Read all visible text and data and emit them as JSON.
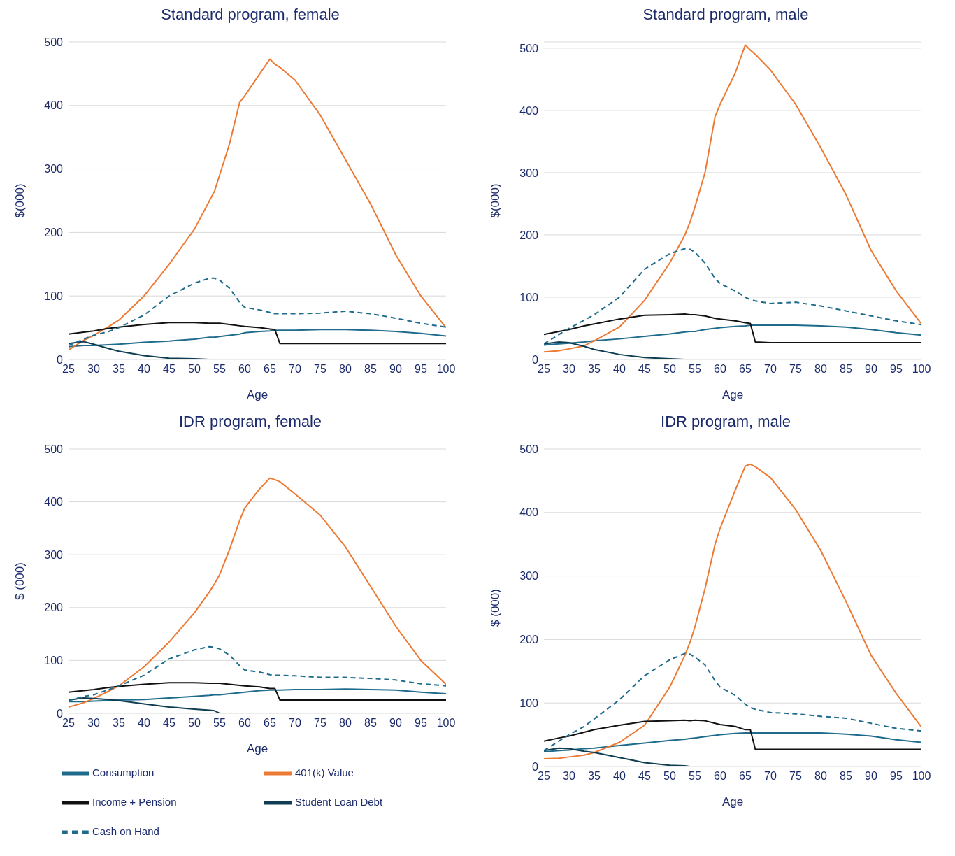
{
  "chart_data": [
    {
      "type": "line",
      "title": "Standard program, female",
      "xlabel": "Age",
      "ylabel": "$(000)",
      "x": [
        25,
        28,
        30,
        33,
        35,
        40,
        45,
        50,
        53,
        54,
        55,
        57,
        59,
        60,
        63,
        65,
        66,
        67,
        70,
        75,
        80,
        85,
        90,
        95,
        100
      ],
      "xlim": [
        25,
        100
      ],
      "xticks": [
        25,
        30,
        35,
        40,
        45,
        50,
        55,
        60,
        65,
        70,
        75,
        80,
        85,
        90,
        95,
        100
      ],
      "ylim": [
        0,
        500
      ],
      "yticks": [
        0,
        100,
        200,
        300,
        400,
        500
      ],
      "grid": "y",
      "legend": false,
      "series": [
        {
          "color": "#1f6b8c",
          "values": [
            20,
            22,
            22,
            23,
            24,
            27,
            29,
            32,
            35,
            35,
            36,
            38,
            40,
            42,
            44,
            45,
            46,
            46,
            46,
            47,
            47,
            46,
            44,
            41,
            37
          ]
        },
        {
          "color": "#ec7a34",
          "values": [
            15,
            30,
            38,
            52,
            62,
            100,
            150,
            205,
            250,
            265,
            290,
            340,
            405,
            415,
            450,
            473,
            465,
            460,
            440,
            385,
            315,
            245,
            165,
            100,
            50
          ]
        },
        {
          "color": "#111111",
          "values": [
            40,
            43,
            45,
            49,
            51,
            55,
            58,
            58,
            57,
            57,
            57,
            55,
            53,
            52,
            50,
            48,
            47,
            25,
            25,
            25,
            25,
            25,
            25,
            25,
            25
          ]
        },
        {
          "color": "#0e3d52",
          "values": [
            25,
            28,
            24,
            17,
            13,
            6,
            2,
            1,
            0,
            0,
            0,
            0,
            0,
            0,
            0,
            0,
            0,
            0,
            0,
            0,
            0,
            0,
            0,
            0,
            0
          ]
        },
        {
          "color": "#1f6b8c",
          "line_style": "dashed",
          "values": [
            22,
            32,
            38,
            44,
            50,
            70,
            100,
            120,
            128,
            128,
            125,
            112,
            90,
            82,
            78,
            74,
            72,
            72,
            72,
            73,
            76,
            72,
            65,
            57,
            51
          ]
        }
      ]
    },
    {
      "type": "line",
      "title": "Standard program, male",
      "xlabel": "Age",
      "ylabel": "$(000)",
      "x": [
        25,
        28,
        30,
        33,
        35,
        40,
        45,
        50,
        53,
        54,
        55,
        57,
        59,
        60,
        63,
        65,
        66,
        67,
        70,
        75,
        80,
        85,
        90,
        95,
        100
      ],
      "xlim": [
        25,
        100
      ],
      "xticks": [
        25,
        30,
        35,
        40,
        45,
        50,
        55,
        60,
        65,
        70,
        75,
        80,
        85,
        90,
        95,
        100
      ],
      "ylim": [
        0,
        510
      ],
      "yticks": [
        0,
        100,
        200,
        300,
        400,
        500
      ],
      "grid": "y",
      "legend": false,
      "series": [
        {
          "color": "#1f6b8c",
          "values": [
            23,
            25,
            26,
            28,
            30,
            33,
            37,
            41,
            44,
            45,
            45,
            48,
            50,
            51,
            53,
            54,
            55,
            55,
            55,
            55,
            54,
            52,
            48,
            43,
            39
          ]
        },
        {
          "color": "#ec7a34",
          "values": [
            12,
            14,
            17,
            22,
            30,
            52,
            95,
            155,
            200,
            220,
            245,
            300,
            390,
            410,
            460,
            505,
            497,
            490,
            465,
            410,
            340,
            265,
            175,
            110,
            57
          ]
        },
        {
          "color": "#111111",
          "values": [
            40,
            45,
            48,
            54,
            57,
            65,
            71,
            72,
            73,
            72,
            72,
            70,
            66,
            65,
            62,
            59,
            58,
            28,
            27,
            27,
            27,
            27,
            27,
            27,
            27
          ]
        },
        {
          "color": "#0e3d52",
          "values": [
            25,
            28,
            27,
            21,
            16,
            8,
            3,
            1,
            0,
            0,
            0,
            0,
            0,
            0,
            0,
            0,
            0,
            0,
            0,
            0,
            0,
            0,
            0,
            0,
            0
          ]
        },
        {
          "color": "#1f6b8c",
          "line_style": "dashed",
          "values": [
            25,
            40,
            50,
            63,
            72,
            100,
            145,
            170,
            178,
            177,
            172,
            155,
            130,
            122,
            110,
            100,
            96,
            94,
            90,
            92,
            86,
            78,
            70,
            62,
            56
          ]
        }
      ]
    },
    {
      "type": "line",
      "title": "IDR program, female",
      "xlabel": "Age",
      "ylabel": "$ (000)",
      "x": [
        25,
        28,
        30,
        33,
        35,
        40,
        45,
        50,
        53,
        54,
        55,
        57,
        59,
        60,
        63,
        65,
        66,
        67,
        70,
        75,
        80,
        85,
        90,
        95,
        100
      ],
      "xlim": [
        25,
        100
      ],
      "xticks": [
        25,
        30,
        35,
        40,
        45,
        50,
        55,
        60,
        65,
        70,
        75,
        80,
        85,
        90,
        95,
        100
      ],
      "ylim": [
        0,
        500
      ],
      "yticks": [
        0,
        100,
        200,
        300,
        400,
        500
      ],
      "grid": "y",
      "legend": "bottom",
      "series": [
        {
          "name": "Consumption",
          "color": "#1f6b8c",
          "values": [
            22,
            22,
            23,
            24,
            25,
            26,
            29,
            32,
            34,
            35,
            35,
            37,
            39,
            40,
            43,
            44,
            44,
            44,
            45,
            45,
            46,
            45,
            44,
            40,
            37
          ]
        },
        {
          "name": "401(k) Value",
          "color": "#ec7a34",
          "values": [
            12,
            20,
            28,
            42,
            52,
            88,
            135,
            190,
            230,
            245,
            262,
            310,
            365,
            388,
            425,
            445,
            442,
            438,
            415,
            375,
            315,
            240,
            165,
            100,
            55
          ]
        },
        {
          "name": "Income + Pension",
          "color": "#111111",
          "values": [
            40,
            43,
            45,
            49,
            51,
            55,
            58,
            58,
            57,
            57,
            57,
            55,
            53,
            52,
            50,
            47,
            47,
            25,
            25,
            25,
            25,
            25,
            25,
            25,
            25
          ]
        },
        {
          "name": "Student Loan Debt",
          "color": "#0e3d52",
          "values": [
            25,
            29,
            28,
            26,
            24,
            18,
            12,
            8,
            6,
            5,
            0,
            0,
            0,
            0,
            0,
            0,
            0,
            0,
            0,
            0,
            0,
            0,
            0,
            0,
            0
          ]
        },
        {
          "name": "Cash on Hand",
          "color": "#1f6b8c",
          "line_style": "dashed",
          "values": [
            24,
            32,
            35,
            45,
            52,
            72,
            103,
            120,
            126,
            125,
            122,
            110,
            90,
            82,
            78,
            73,
            72,
            72,
            71,
            68,
            68,
            66,
            63,
            56,
            52
          ]
        }
      ]
    },
    {
      "type": "line",
      "title": "IDR program, male",
      "xlabel": "Age",
      "ylabel": "$ (000)",
      "x": [
        25,
        28,
        30,
        33,
        35,
        40,
        45,
        50,
        53,
        54,
        55,
        57,
        59,
        60,
        63,
        65,
        66,
        67,
        70,
        75,
        80,
        85,
        90,
        95,
        100
      ],
      "xlim": [
        25,
        100
      ],
      "xticks": [
        25,
        30,
        35,
        40,
        45,
        50,
        55,
        60,
        65,
        70,
        75,
        80,
        85,
        90,
        95,
        100
      ],
      "ylim": [
        0,
        500
      ],
      "yticks": [
        0,
        100,
        200,
        300,
        400,
        500
      ],
      "grid": "y",
      "legend": false,
      "series": [
        {
          "color": "#1f6b8c",
          "values": [
            23,
            25,
            26,
            28,
            29,
            33,
            37,
            41,
            43,
            44,
            45,
            47,
            49,
            50,
            52,
            53,
            53,
            53,
            53,
            53,
            53,
            51,
            48,
            42,
            38
          ]
        },
        {
          "color": "#ec7a34",
          "values": [
            12,
            13,
            15,
            18,
            22,
            38,
            65,
            125,
            175,
            195,
            220,
            280,
            350,
            375,
            435,
            473,
            476,
            472,
            455,
            405,
            340,
            260,
            175,
            115,
            62
          ]
        },
        {
          "color": "#111111",
          "values": [
            40,
            45,
            48,
            54,
            58,
            65,
            71,
            72,
            73,
            72,
            73,
            72,
            68,
            66,
            63,
            58,
            58,
            27,
            27,
            27,
            27,
            27,
            27,
            27,
            27
          ]
        },
        {
          "color": "#0e3d52",
          "values": [
            25,
            29,
            28,
            24,
            22,
            14,
            6,
            2,
            1,
            0,
            0,
            0,
            0,
            0,
            0,
            0,
            0,
            0,
            0,
            0,
            0,
            0,
            0,
            0,
            0
          ]
        },
        {
          "color": "#1f6b8c",
          "line_style": "dashed",
          "values": [
            25,
            40,
            50,
            63,
            75,
            105,
            143,
            168,
            178,
            177,
            172,
            160,
            135,
            125,
            112,
            98,
            93,
            90,
            85,
            83,
            79,
            76,
            68,
            60,
            56
          ]
        }
      ]
    }
  ]
}
